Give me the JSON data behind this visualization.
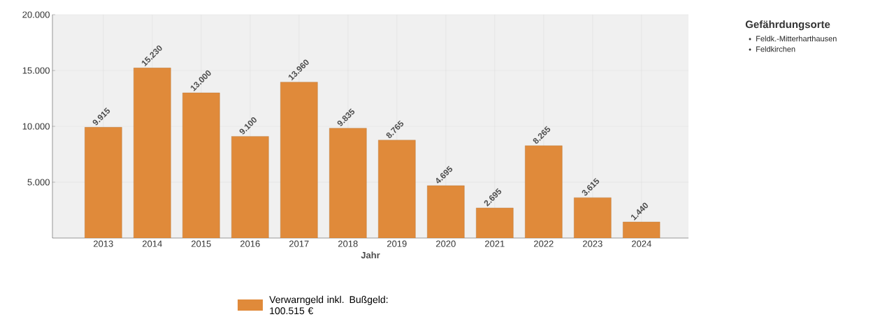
{
  "chart_data": {
    "type": "bar",
    "xlabel": "Jahr",
    "categories": [
      "2013",
      "2014",
      "2015",
      "2016",
      "2017",
      "2018",
      "2019",
      "2020",
      "2021",
      "2022",
      "2023",
      "2024"
    ],
    "series": [
      {
        "name": "Verwarngeld inkl. Bußgeld: 100.515 €",
        "color": "#e08a3a",
        "values": [
          9915,
          15230,
          13000,
          9100,
          13960,
          9835,
          8765,
          4695,
          2695,
          8265,
          3615,
          1440
        ],
        "value_labels": [
          "9.915",
          "15.230",
          "13.000",
          "9.100",
          "13.960",
          "9.835",
          "8.765",
          "4.695",
          "2.695",
          "8.265",
          "3.615",
          "1.440"
        ]
      }
    ],
    "ylim": [
      0,
      20000
    ],
    "yticks": [
      {
        "value": 5000,
        "label": "5.000"
      },
      {
        "value": 10000,
        "label": "10.000"
      },
      {
        "value": 15000,
        "label": "15.000"
      },
      {
        "value": 20000,
        "label": "20.000"
      }
    ],
    "grid": true,
    "legend": "bottom",
    "annotations": [
      "Gefährdungsorte",
      "Feldk.-Mitterharthausen",
      "Feldkirchen"
    ]
  }
}
